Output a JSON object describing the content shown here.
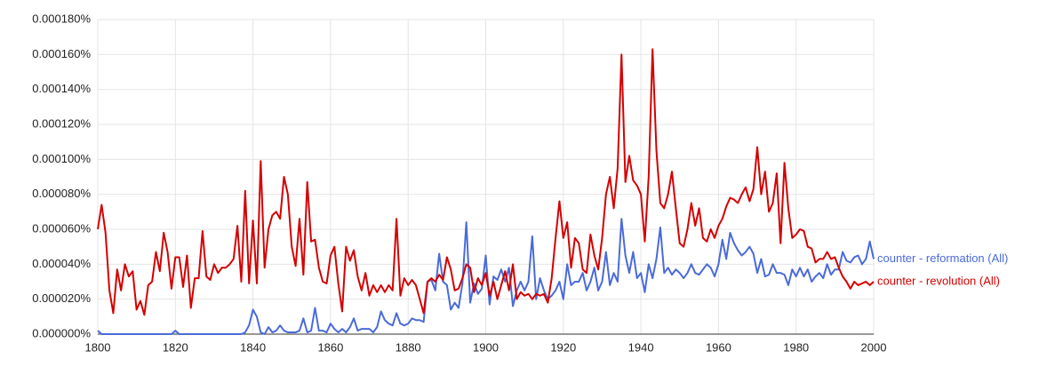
{
  "chart_data": {
    "type": "line",
    "x": [
      1800,
      1801,
      1802,
      1803,
      1804,
      1805,
      1806,
      1807,
      1808,
      1809,
      1810,
      1811,
      1812,
      1813,
      1814,
      1815,
      1816,
      1817,
      1818,
      1819,
      1820,
      1821,
      1822,
      1823,
      1824,
      1825,
      1826,
      1827,
      1828,
      1829,
      1830,
      1831,
      1832,
      1833,
      1834,
      1835,
      1836,
      1837,
      1838,
      1839,
      1840,
      1841,
      1842,
      1843,
      1844,
      1845,
      1846,
      1847,
      1848,
      1849,
      1850,
      1851,
      1852,
      1853,
      1854,
      1855,
      1856,
      1857,
      1858,
      1859,
      1860,
      1861,
      1862,
      1863,
      1864,
      1865,
      1866,
      1867,
      1868,
      1869,
      1870,
      1871,
      1872,
      1873,
      1874,
      1875,
      1876,
      1877,
      1878,
      1879,
      1880,
      1881,
      1882,
      1883,
      1884,
      1885,
      1886,
      1887,
      1888,
      1889,
      1890,
      1891,
      1892,
      1893,
      1894,
      1895,
      1896,
      1897,
      1898,
      1899,
      1900,
      1901,
      1902,
      1903,
      1904,
      1905,
      1906,
      1907,
      1908,
      1909,
      1910,
      1911,
      1912,
      1913,
      1914,
      1915,
      1916,
      1917,
      1918,
      1919,
      1920,
      1921,
      1922,
      1923,
      1924,
      1925,
      1926,
      1927,
      1928,
      1929,
      1930,
      1931,
      1932,
      1933,
      1934,
      1935,
      1936,
      1937,
      1938,
      1939,
      1940,
      1941,
      1942,
      1943,
      1944,
      1945,
      1946,
      1947,
      1948,
      1949,
      1950,
      1951,
      1952,
      1953,
      1954,
      1955,
      1956,
      1957,
      1958,
      1959,
      1960,
      1961,
      1962,
      1963,
      1964,
      1965,
      1966,
      1967,
      1968,
      1969,
      1970,
      1971,
      1972,
      1973,
      1974,
      1975,
      1976,
      1977,
      1978,
      1979,
      1980,
      1981,
      1982,
      1983,
      1984,
      1985,
      1986,
      1987,
      1988,
      1989,
      1990,
      1991,
      1992,
      1993,
      1994,
      1995,
      1996,
      1997,
      1998,
      1999,
      2000
    ],
    "series": [
      {
        "name": "counter - reformation (All)",
        "color": "#4a6bd8",
        "values": [
          2e-06,
          0,
          0,
          0,
          0,
          0,
          0,
          0,
          0,
          0,
          0,
          0,
          0,
          0,
          0,
          0,
          0,
          0,
          0,
          0,
          2e-06,
          0,
          0,
          0,
          0,
          0,
          0,
          0,
          0,
          0,
          0,
          0,
          0,
          0,
          0,
          0,
          0,
          0,
          1e-06,
          5e-06,
          1.4e-05,
          1e-05,
          1e-06,
          0,
          4e-06,
          1e-06,
          2e-06,
          5e-06,
          2e-06,
          1e-06,
          1e-06,
          1e-06,
          2e-06,
          9e-06,
          1e-06,
          2e-06,
          1.5e-05,
          2e-06,
          2e-06,
          1e-06,
          6e-06,
          3e-06,
          1e-06,
          3e-06,
          1e-06,
          4e-06,
          9e-06,
          2e-06,
          3e-06,
          3e-06,
          3e-06,
          1e-06,
          4e-06,
          1.3e-05,
          8e-06,
          6e-06,
          5e-06,
          1.2e-05,
          6e-06,
          5e-06,
          6e-06,
          9e-06,
          8e-06,
          8e-06,
          7e-06,
          3e-05,
          3.1e-05,
          2.5e-05,
          4.6e-05,
          3e-05,
          2.8e-05,
          1.4e-05,
          1.8e-05,
          1.5e-05,
          2.9e-05,
          6.4e-05,
          1.8e-05,
          2.9e-05,
          2.3e-05,
          2.6e-05,
          4.5e-05,
          1.7e-05,
          3.3e-05,
          3.1e-05,
          3.7e-05,
          3e-05,
          3.8e-05,
          1.6e-05,
          2.5e-05,
          3e-05,
          2.5e-05,
          3e-05,
          5.6e-05,
          2e-05,
          3.2e-05,
          2.5e-05,
          2e-05,
          2.2e-05,
          2.5e-05,
          3e-05,
          2e-05,
          4e-05,
          2.8e-05,
          3e-05,
          3e-05,
          3.5e-05,
          2.5e-05,
          3e-05,
          3.8e-05,
          2.5e-05,
          3e-05,
          4.7e-05,
          2.8e-05,
          3.5e-05,
          3e-05,
          6.6e-05,
          4.5e-05,
          3.5e-05,
          4.7e-05,
          3.2e-05,
          3.5e-05,
          2.4e-05,
          4e-05,
          3.2e-05,
          4.3e-05,
          6.1e-05,
          3.5e-05,
          3.8e-05,
          3.4e-05,
          3.7e-05,
          3.5e-05,
          3.2e-05,
          3.5e-05,
          4e-05,
          3.5e-05,
          3.4e-05,
          3.7e-05,
          4e-05,
          3.8e-05,
          3.3e-05,
          4e-05,
          5.4e-05,
          4.3e-05,
          5.8e-05,
          5.2e-05,
          4.8e-05,
          4.5e-05,
          4.7e-05,
          5e-05,
          4.6e-05,
          3.5e-05,
          4.3e-05,
          3.3e-05,
          3.4e-05,
          4e-05,
          3.5e-05,
          3.5e-05,
          3.4e-05,
          2.8e-05,
          3.7e-05,
          3.3e-05,
          3.8e-05,
          3.3e-05,
          3.7e-05,
          3e-05,
          3.3e-05,
          3.5e-05,
          3.2e-05,
          4e-05,
          3.4e-05,
          3.7e-05,
          3.7e-05,
          4.7e-05,
          4.2e-05,
          4.1e-05,
          4.4e-05,
          4.5e-05,
          4e-05,
          4.3e-05,
          5.3e-05,
          4.3e-05
        ]
      },
      {
        "name": "counter - revolution (All)",
        "color": "#d40000",
        "values": [
          6e-05,
          7.4e-05,
          5.8e-05,
          2.5e-05,
          1.2e-05,
          3.7e-05,
          2.5e-05,
          4e-05,
          3.3e-05,
          3.6e-05,
          1.4e-05,
          1.9e-05,
          1.1e-05,
          2.8e-05,
          3e-05,
          4.7e-05,
          3.6e-05,
          5.8e-05,
          4.7e-05,
          2.6e-05,
          4.4e-05,
          4.4e-05,
          2.7e-05,
          4.5e-05,
          1.5e-05,
          3.2e-05,
          3.2e-05,
          5.9e-05,
          3.3e-05,
          3.1e-05,
          4e-05,
          3.5e-05,
          3.8e-05,
          3.8e-05,
          4e-05,
          4.3e-05,
          6.2e-05,
          3e-05,
          8.2e-05,
          2.9e-05,
          6.5e-05,
          2.9e-05,
          9.9e-05,
          3.8e-05,
          6e-05,
          6.8e-05,
          7e-05,
          6.6e-05,
          9e-05,
          8e-05,
          5e-05,
          3.9e-05,
          6.6e-05,
          3.4e-05,
          8.7e-05,
          5.3e-05,
          5.4e-05,
          3.8e-05,
          3e-05,
          2.9e-05,
          4.5e-05,
          5e-05,
          2.9e-05,
          1.3e-05,
          5e-05,
          4.2e-05,
          4.8e-05,
          3.3e-05,
          2.5e-05,
          3.5e-05,
          2.2e-05,
          2.8e-05,
          2.4e-05,
          2.8e-05,
          2.4e-05,
          2.8e-05,
          2.5e-05,
          6.6e-05,
          2.2e-05,
          3.2e-05,
          2.8e-05,
          3.1e-05,
          2.8e-05,
          2e-05,
          1.2e-05,
          3e-05,
          3.2e-05,
          3e-05,
          3.4e-05,
          3.1e-05,
          4.4e-05,
          3.7e-05,
          2.5e-05,
          2.6e-05,
          3.2e-05,
          4e-05,
          3.8e-05,
          2.4e-05,
          3.2e-05,
          2.8e-05,
          3.5e-05,
          2.2e-05,
          3e-05,
          2e-05,
          2.8e-05,
          3.6e-05,
          2.5e-05,
          4e-05,
          2e-05,
          2.4e-05,
          2.2e-05,
          2.3e-05,
          2e-05,
          2.3e-05,
          2.2e-05,
          2.3e-05,
          1.8e-05,
          3.2e-05,
          5.5e-05,
          7.6e-05,
          5.5e-05,
          6.4e-05,
          3.8e-05,
          5.5e-05,
          5.2e-05,
          3.7e-05,
          3.5e-05,
          5.7e-05,
          4.5e-05,
          3.7e-05,
          5.5e-05,
          8e-05,
          9e-05,
          7.2e-05,
          9.5e-05,
          0.00016,
          8.7e-05,
          0.000102,
          8.8e-05,
          8.5e-05,
          8e-05,
          5.3e-05,
          9e-05,
          0.000163,
          0.000105,
          7.5e-05,
          7.2e-05,
          8e-05,
          9.3e-05,
          7.2e-05,
          5.2e-05,
          5e-05,
          6e-05,
          7.5e-05,
          6.2e-05,
          7.2e-05,
          5.5e-05,
          5.3e-05,
          6e-05,
          5.5e-05,
          6.2e-05,
          6.6e-05,
          7.3e-05,
          7.8e-05,
          7.7e-05,
          7.5e-05,
          8e-05,
          8.4e-05,
          7.6e-05,
          8.3e-05,
          0.000107,
          8e-05,
          9.3e-05,
          7e-05,
          7.5e-05,
          9.2e-05,
          5.2e-05,
          9.8e-05,
          7.2e-05,
          5.5e-05,
          5.7e-05,
          6e-05,
          5.9e-05,
          5e-05,
          4.9e-05,
          4.1e-05,
          4.3e-05,
          4.3e-05,
          4.7e-05,
          4.3e-05,
          4.4e-05,
          3.8e-05,
          3.3e-05,
          3e-05,
          2.6e-05,
          3e-05,
          2.8e-05,
          2.9e-05,
          3e-05,
          2.8e-05,
          3e-05
        ]
      }
    ],
    "xlim": [
      1800,
      2000
    ],
    "xticks": [
      1800,
      1820,
      1840,
      1860,
      1880,
      1900,
      1920,
      1940,
      1960,
      1980,
      2000
    ],
    "ylim": [
      0,
      0.00018
    ],
    "yticks": [
      {
        "value": 0,
        "label": "0.000000%"
      },
      {
        "value": 2e-05,
        "label": "0.000020%"
      },
      {
        "value": 4e-05,
        "label": "0.000040%"
      },
      {
        "value": 6e-05,
        "label": "0.000060%"
      },
      {
        "value": 8e-05,
        "label": "0.000080%"
      },
      {
        "value": 0.0001,
        "label": "0.000100%"
      },
      {
        "value": 0.00012,
        "label": "0.000120%"
      },
      {
        "value": 0.00014,
        "label": "0.000140%"
      },
      {
        "value": 0.00016,
        "label": "0.000160%"
      },
      {
        "value": 0.00018,
        "label": "0.000180%"
      }
    ],
    "grid": true,
    "legend": "right"
  }
}
